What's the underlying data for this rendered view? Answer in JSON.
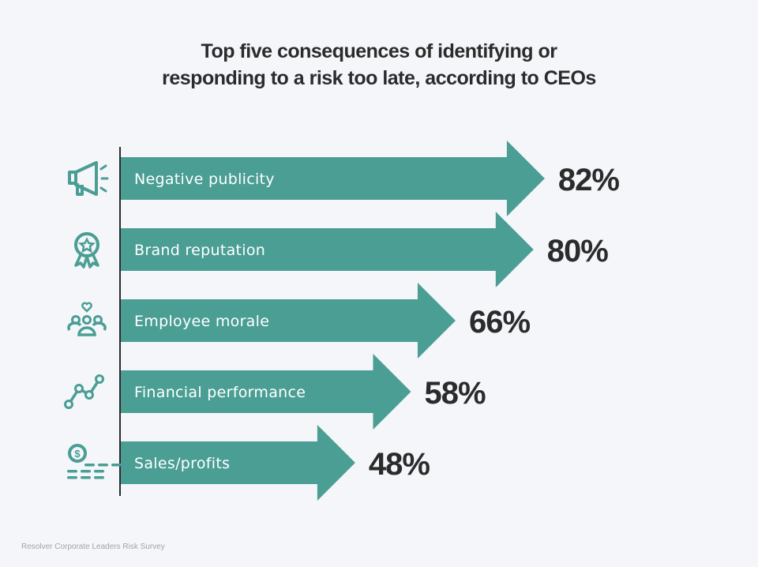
{
  "chart_data": {
    "type": "bar",
    "orientation": "horizontal",
    "title_lines": [
      "Top five consequences of identifying or",
      "responding to a risk too late, according to CEOs"
    ],
    "categories": [
      "Negative publicity",
      "Brand reputation",
      "Employee morale",
      "Financial performance",
      "Sales/profits"
    ],
    "values": [
      82,
      80,
      66,
      58,
      48
    ],
    "value_labels": [
      "82%",
      "80%",
      "66%",
      "58%",
      "48%"
    ],
    "icons": [
      "megaphone-icon",
      "award-ribbon-icon",
      "team-heart-icon",
      "line-chart-icon",
      "coins-dollar-icon"
    ],
    "source": "Resolver Corporate Leaders Risk Survey",
    "bar_color": "#4a9e94",
    "grid": false
  }
}
